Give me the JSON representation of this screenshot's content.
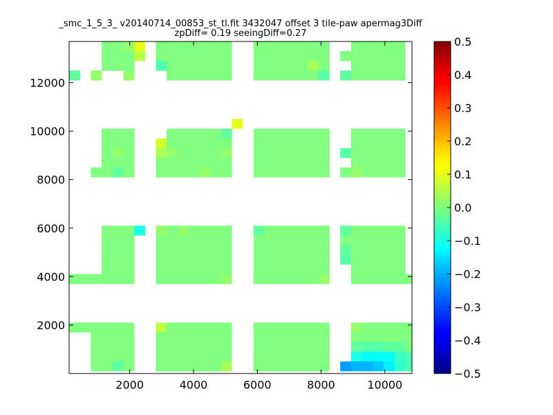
{
  "chart_data": {
    "type": "heatmap",
    "title_lines": [
      "_smc_1_5_3_ v20140714_00853_st_tl.fit 3432047 offset 3 tile-paw apermag3Diff",
      "zpDiff= 0.19 seeingDiff=0.27"
    ],
    "xlabel": "",
    "ylabel": "",
    "xlim": [
      100,
      10850
    ],
    "ylim": [
      0,
      13700
    ],
    "xticks": [
      2000,
      4000,
      6000,
      8000,
      10000
    ],
    "xtick_labels": [
      "2000",
      "4000",
      "6000",
      "8000",
      "10000"
    ],
    "yticks": [
      2000,
      4000,
      6000,
      8000,
      10000,
      12000
    ],
    "ytick_labels": [
      "2000",
      "4000",
      "6000",
      "8000",
      "10000",
      "12000"
    ],
    "colorbar": {
      "colormap": "jet",
      "vmin": -0.5,
      "vmax": 0.5,
      "ticks": [
        0.5,
        0.4,
        0.3,
        0.2,
        0.1,
        0.0,
        -0.1,
        -0.2,
        -0.3,
        -0.4,
        -0.5
      ],
      "tick_labels": [
        "0.5",
        "0.4",
        "0.3",
        "0.2",
        "0.1",
        "0.0",
        "−0.1",
        "−0.2",
        "−0.3",
        "−0.4",
        "−0.5"
      ]
    },
    "cell_size": [
      340,
      400
    ],
    "grid_columns": [
      "100-440",
      "440-780",
      "780-1120",
      "1120-1460",
      "1460-1800",
      "1800-2140",
      "2140-2480",
      "2480-2820",
      "2820-3160",
      "3160-3500",
      "3500-3840",
      "3840-4180",
      "4180-4520",
      "4520-4860",
      "4860-5200",
      "5200-5540",
      "5540-5880",
      "5880-6220",
      "6220-6560",
      "6560-6900",
      "6900-7240",
      "7240-7580",
      "7580-7920",
      "7920-8260",
      "8260-8600",
      "8600-8940",
      "8940-9280",
      "9280-9620",
      "9620-9960",
      "9960-10300",
      "10300-10640",
      "10640-10980"
    ],
    "grid_rows_top_to_bottom": [
      "13300-13700",
      "12900-13300",
      "12500-12900",
      "12100-12500",
      "11700-12100",
      "11300-11700",
      "10900-11300",
      "10500-10900",
      "10100-10500",
      "9700-10100",
      "9300-9700",
      "8900-9300",
      "8500-8900",
      "8100-8500",
      "7700-8100",
      "7300-7700",
      "6900-7300",
      "6500-6900",
      "6100-6500",
      "5700-6100",
      "5300-5700",
      "4900-5300",
      "4500-4900",
      "4100-4500",
      "3700-4100",
      "3300-3700",
      "2900-3300",
      "2500-2900",
      "2100-2500",
      "1700-2100",
      "1300-1700",
      "900-1300",
      "500-900",
      "100-500",
      "-300-100"
    ],
    "base_value": 0.0,
    "blank_value": "",
    "grid_values_top_to_bottom": [
      [
        "",
        "",
        "",
        "0.0",
        "0.0",
        "0.02",
        "0.1",
        "",
        "0.0",
        "0.0",
        "0.0",
        "0.0",
        "0.0",
        "0.0",
        "0.0",
        "",
        "",
        "0.0",
        "0.0",
        "0.0",
        "0.0",
        "0.0",
        "0.0",
        "0.0",
        "",
        "",
        "0.0",
        "0.0",
        "0.0",
        "0.0",
        "0.0",
        ""
      ],
      [
        "",
        "",
        "",
        "0.0",
        "0.0",
        "0.0",
        "0.06",
        "",
        "0.0",
        "0.0",
        "0.0",
        "0.0",
        "0.0",
        "0.0",
        "0.0",
        "",
        "",
        "0.0",
        "0.0",
        "0.0",
        "0.0",
        "0.0",
        "0.0",
        "0.0",
        "",
        "0.0",
        "0.0",
        "0.0",
        "0.0",
        "0.0",
        "0.0",
        ""
      ],
      [
        "",
        "",
        "",
        "0.0",
        "0.0",
        "0.0",
        "",
        "",
        "-0.05",
        "0.0",
        "0.0",
        "0.0",
        "0.0",
        "0.0",
        "0.0",
        "",
        "",
        "0.0",
        "0.0",
        "0.0",
        "0.0",
        "0.0",
        "0.04",
        "0.0",
        "",
        "",
        "0.0",
        "0.0",
        "0.0",
        "0.0",
        "0.0",
        ""
      ],
      [
        "-0.03",
        "",
        "0.02",
        "",
        "",
        "0.02",
        "",
        "",
        "",
        "0.0",
        "0.0",
        "0.0",
        "0.0",
        "0.0",
        "0.0",
        "",
        "",
        "0.0",
        "0.0",
        "0.0",
        "0.0",
        "0.0",
        "0.0",
        "-0.04",
        "",
        "-0.03",
        "0.0",
        "0.0",
        "0.0",
        "0.0",
        "0.0",
        ""
      ],
      [
        "",
        "",
        "",
        "",
        "",
        "",
        "",
        "",
        "",
        "",
        "",
        "",
        "",
        "",
        "",
        "",
        "",
        "",
        "",
        "",
        "",
        "",
        "",
        "",
        "",
        "",
        "",
        "",
        "",
        "",
        "",
        ""
      ],
      [
        "",
        "",
        "",
        "",
        "",
        "",
        "",
        "",
        "",
        "",
        "",
        "",
        "",
        "",
        "",
        "",
        "",
        "",
        "",
        "",
        "",
        "",
        "",
        "",
        "",
        "",
        "",
        "",
        "",
        "",
        "",
        ""
      ],
      [
        "",
        "",
        "",
        "",
        "",
        "",
        "",
        "",
        "",
        "",
        "",
        "",
        "",
        "",
        "",
        "",
        "",
        "",
        "",
        "",
        "",
        "",
        "",
        "",
        "",
        "",
        "",
        "",
        "",
        "",
        "",
        ""
      ],
      [
        "",
        "",
        "",
        "",
        "",
        "",
        "",
        "",
        "",
        "",
        "",
        "",
        "",
        "",
        "",
        "",
        "",
        "",
        "",
        "",
        "",
        "",
        "",
        "",
        "",
        "",
        "",
        "",
        "",
        "",
        "",
        ""
      ],
      [
        "",
        "",
        "",
        "",
        "",
        "",
        "",
        "",
        "",
        "",
        "",
        "",
        "",
        "",
        "",
        "0.1",
        "",
        "",
        "",
        "",
        "",
        "",
        "",
        "",
        "",
        "",
        "",
        "",
        "",
        "",
        "",
        ""
      ],
      [
        "",
        "",
        "",
        "0.0",
        "0.0",
        "0.0",
        "",
        "",
        "",
        "0.0",
        "0.0",
        "0.0",
        "0.0",
        "0.0",
        "-0.03",
        "",
        "",
        "0.0",
        "0.0",
        "0.0",
        "0.0",
        "0.0",
        "0.0",
        "0.0",
        "",
        "",
        "0.0",
        "0.0",
        "0.0",
        "0.0",
        "0.0",
        ""
      ],
      [
        "",
        "",
        "",
        "0.0",
        "0.0",
        "0.0",
        "",
        "",
        "0.08",
        "0.0",
        "0.0",
        "0.0",
        "0.0",
        "0.0",
        "0.0",
        "",
        "",
        "0.0",
        "0.0",
        "0.0",
        "0.0",
        "0.0",
        "0.0",
        "0.0",
        "",
        "",
        "0.0",
        "0.0",
        "0.0",
        "0.0",
        "0.0",
        ""
      ],
      [
        "",
        "",
        "",
        "0.0",
        "0.02",
        "0.0",
        "",
        "",
        "0.04",
        "0.02",
        "0.0",
        "0.0",
        "0.0",
        "0.0",
        "0.02",
        "",
        "",
        "0.0",
        "0.0",
        "0.0",
        "0.0",
        "0.0",
        "0.0",
        "0.0",
        "",
        "-0.04",
        "0.0",
        "0.0",
        "0.0",
        "0.0",
        "0.0",
        ""
      ],
      [
        "",
        "",
        "",
        "0.0",
        "0.0",
        "0.0",
        "",
        "",
        "0.0",
        "0.0",
        "0.0",
        "0.0",
        "0.0",
        "0.0",
        "0.0",
        "",
        "",
        "0.0",
        "0.0",
        "0.0",
        "0.0",
        "0.0",
        "0.0",
        "0.0",
        "",
        "",
        "0.0",
        "0.0",
        "0.0",
        "0.0",
        "0.0",
        ""
      ],
      [
        "",
        "",
        "0.0",
        "0.0",
        "-0.03",
        "0.0",
        "",
        "",
        "0.0",
        "0.0",
        "0.0",
        "0.0",
        "0.02",
        "0.0",
        "0.0",
        "",
        "",
        "0.0",
        "0.0",
        "0.0",
        "0.0",
        "0.0",
        "0.0",
        "0.0",
        "",
        "0.0",
        "0.02",
        "0.0",
        "0.0",
        "0.0",
        "0.0",
        ""
      ],
      [
        "",
        "",
        "",
        "",
        "",
        "",
        "",
        "",
        "",
        "",
        "",
        "",
        "",
        "",
        "",
        "",
        "",
        "",
        "",
        "",
        "",
        "",
        "",
        "",
        "",
        "",
        "",
        "",
        "",
        "",
        "",
        ""
      ],
      [
        "",
        "",
        "",
        "",
        "",
        "",
        "",
        "",
        "",
        "",
        "",
        "",
        "",
        "",
        "",
        "",
        "",
        "",
        "",
        "",
        "",
        "",
        "",
        "",
        "",
        "",
        "",
        "",
        "",
        "",
        "",
        ""
      ],
      [
        "",
        "",
        "",
        "",
        "",
        "",
        "",
        "",
        "",
        "",
        "",
        "",
        "",
        "",
        "",
        "",
        "",
        "",
        "",
        "",
        "",
        "",
        "",
        "",
        "",
        "",
        "",
        "",
        "",
        "",
        "",
        ""
      ],
      [
        "",
        "",
        "",
        "",
        "",
        "",
        "",
        "",
        "",
        "",
        "",
        "",
        "",
        "",
        "",
        "",
        "",
        "",
        "",
        "",
        "",
        "",
        "",
        "",
        "",
        "",
        "",
        "",
        "",
        "",
        "",
        ""
      ],
      [
        "",
        "",
        "",
        "",
        "",
        "",
        "",
        "",
        "",
        "",
        "",
        "",
        "",
        "",
        "",
        "",
        "",
        "",
        "",
        "",
        "",
        "",
        "",
        "",
        "",
        "",
        "",
        "",
        "",
        "",
        "",
        ""
      ],
      [
        "",
        "",
        "",
        "0.0",
        "0.0",
        "0.0",
        "-0.1",
        "",
        "0.02",
        "0.0",
        "0.02",
        "0.0",
        "0.0",
        "0.0",
        "0.0",
        "",
        "",
        "-0.03",
        "0.0",
        "0.0",
        "0.0",
        "0.0",
        "0.0",
        "0.0",
        "",
        "-0.03",
        "0.0",
        "0.0",
        "0.0",
        "0.0",
        "0.0",
        ""
      ],
      [
        "",
        "",
        "",
        "0.0",
        "0.0",
        "0.0",
        "",
        "",
        "0.0",
        "0.0",
        "0.0",
        "0.0",
        "0.0",
        "0.0",
        "0.0",
        "",
        "",
        "0.0",
        "0.0",
        "0.0",
        "0.0",
        "0.0",
        "0.0",
        "0.0",
        "",
        "0.0",
        "0.0",
        "0.0",
        "0.0",
        "0.0",
        "0.0",
        ""
      ],
      [
        "",
        "",
        "",
        "0.0",
        "0.0",
        "0.0",
        "",
        "",
        "0.0",
        "0.0",
        "0.0",
        "0.0",
        "0.0",
        "0.0",
        "0.0",
        "",
        "",
        "0.0",
        "0.0",
        "0.0",
        "0.0",
        "0.0",
        "0.0",
        "0.0",
        "",
        "-0.03",
        "0.0",
        "0.0",
        "0.0",
        "0.0",
        "0.0",
        ""
      ],
      [
        "",
        "",
        "",
        "0.0",
        "0.0",
        "0.0",
        "",
        "",
        "0.0",
        "0.0",
        "0.0",
        "0.0",
        "0.0",
        "0.0",
        "0.0",
        "",
        "",
        "0.0",
        "0.0",
        "0.0",
        "0.0",
        "0.0",
        "0.0",
        "0.0",
        "",
        "-0.04",
        "0.0",
        "0.0",
        "0.0",
        "0.0",
        "0.0",
        ""
      ],
      [
        "",
        "",
        "",
        "0.0",
        "0.0",
        "0.0",
        "",
        "",
        "0.0",
        "0.0",
        "0.0",
        "0.0",
        "0.0",
        "0.0",
        "0.0",
        "",
        "",
        "0.0",
        "0.0",
        "0.0",
        "0.0",
        "0.0",
        "0.0",
        "0.0",
        "",
        "",
        "0.0",
        "0.0",
        "0.0",
        "0.0",
        "0.0",
        ""
      ],
      [
        "0.0",
        "0.0",
        "0.0",
        "0.0",
        "0.0",
        "0.0",
        "",
        "",
        "0.0",
        "0.0",
        "0.0",
        "0.0",
        "0.0",
        "0.0",
        "0.02",
        "",
        "",
        "0.0",
        "0.0",
        "0.0",
        "0.0",
        "0.0",
        "0.0",
        "0.02",
        "",
        "",
        "0.0",
        "0.0",
        "0.0",
        "0.0",
        "0.0",
        "0.0"
      ],
      [
        "",
        "",
        "",
        "",
        "",
        "",
        "",
        "",
        "",
        "",
        "",
        "",
        "",
        "",
        "",
        "",
        "",
        "",
        "",
        "",
        "",
        "",
        "",
        "",
        "",
        "",
        "",
        "",
        "",
        "",
        "",
        ""
      ],
      [
        "",
        "",
        "",
        "",
        "",
        "",
        "",
        "",
        "",
        "",
        "",
        "",
        "",
        "",
        "",
        "",
        "",
        "",
        "",
        "",
        "",
        "",
        "",
        "",
        "",
        "",
        "",
        "",
        "",
        "",
        "",
        ""
      ],
      [
        "",
        "",
        "",
        "",
        "",
        "",
        "",
        "",
        "",
        "",
        "",
        "",
        "",
        "",
        "",
        "",
        "",
        "",
        "",
        "",
        "",
        "",
        "",
        "",
        "",
        "",
        "",
        "",
        "",
        "",
        "",
        ""
      ],
      [
        "",
        "",
        "",
        "",
        "",
        "",
        "",
        "",
        "",
        "",
        "",
        "",
        "",
        "",
        "",
        "",
        "",
        "",
        "",
        "",
        "",
        "",
        "",
        "",
        "",
        "",
        "",
        "",
        "",
        "",
        "",
        ""
      ],
      [
        "0.0",
        "0.0",
        "0.0",
        "0.0",
        "0.0",
        "0.0",
        "",
        "",
        "0.06",
        "0.0",
        "0.0",
        "0.0",
        "0.0",
        "0.0",
        "0.0",
        "",
        "",
        "0.0",
        "0.0",
        "0.0",
        "0.0",
        "0.0",
        "0.0",
        "0.0",
        "",
        "",
        "0.02",
        "0.0",
        "0.0",
        "0.0",
        "0.0",
        "0.0"
      ],
      [
        "",
        "",
        "0.0",
        "0.0",
        "0.0",
        "0.0",
        "",
        "",
        "0.0",
        "0.0",
        "0.0",
        "0.0",
        "0.0",
        "0.0",
        "0.0",
        "",
        "",
        "0.0",
        "0.0",
        "0.0",
        "0.0",
        "0.0",
        "0.0",
        "0.0",
        "",
        "",
        "0.0",
        "0.0",
        "0.0",
        "0.0",
        "0.0",
        "0.0"
      ],
      [
        "",
        "",
        "0.0",
        "0.0",
        "0.0",
        "0.0",
        "",
        "",
        "0.0",
        "0.0",
        "0.0",
        "0.0",
        "0.0",
        "0.0",
        "0.0",
        "",
        "",
        "0.0",
        "0.0",
        "0.0",
        "0.0",
        "0.0",
        "0.0",
        "0.0",
        "",
        "",
        "-0.03",
        "-0.04",
        "-0.04",
        "-0.03",
        "-0.03",
        "0.0"
      ],
      [
        "",
        "",
        "0.0",
        "0.0",
        "0.0",
        "0.0",
        "",
        "",
        "0.0",
        "0.0",
        "0.0",
        "0.0",
        "0.0",
        "0.0",
        "0.0",
        "",
        "",
        "0.0",
        "0.0",
        "0.0",
        "0.0",
        "0.0",
        "0.0",
        "0.0",
        "",
        "",
        "-0.1",
        "-0.12",
        "-0.12",
        "-0.12",
        "-0.07",
        "-0.05"
      ],
      [
        "",
        "",
        "0.0",
        "0.0",
        "-0.03",
        "0.0",
        "",
        "",
        "0.0",
        "0.0",
        "0.0",
        "0.0",
        "0.0",
        "0.0",
        "0.04",
        "",
        "",
        "0.0",
        "0.0",
        "0.0",
        "0.0",
        "0.0",
        "0.0",
        "0.0",
        "",
        "-0.22",
        "-0.2",
        "-0.2",
        "-0.18",
        "-0.14",
        "-0.08",
        "-0.05"
      ],
      [
        "",
        "",
        "",
        "",
        "",
        "",
        "",
        "",
        "",
        "",
        "",
        "",
        "",
        "",
        "",
        "",
        "",
        "",
        "",
        "",
        "",
        "",
        "",
        "",
        "",
        "",
        "",
        "",
        "",
        "",
        "",
        ""
      ]
    ]
  }
}
